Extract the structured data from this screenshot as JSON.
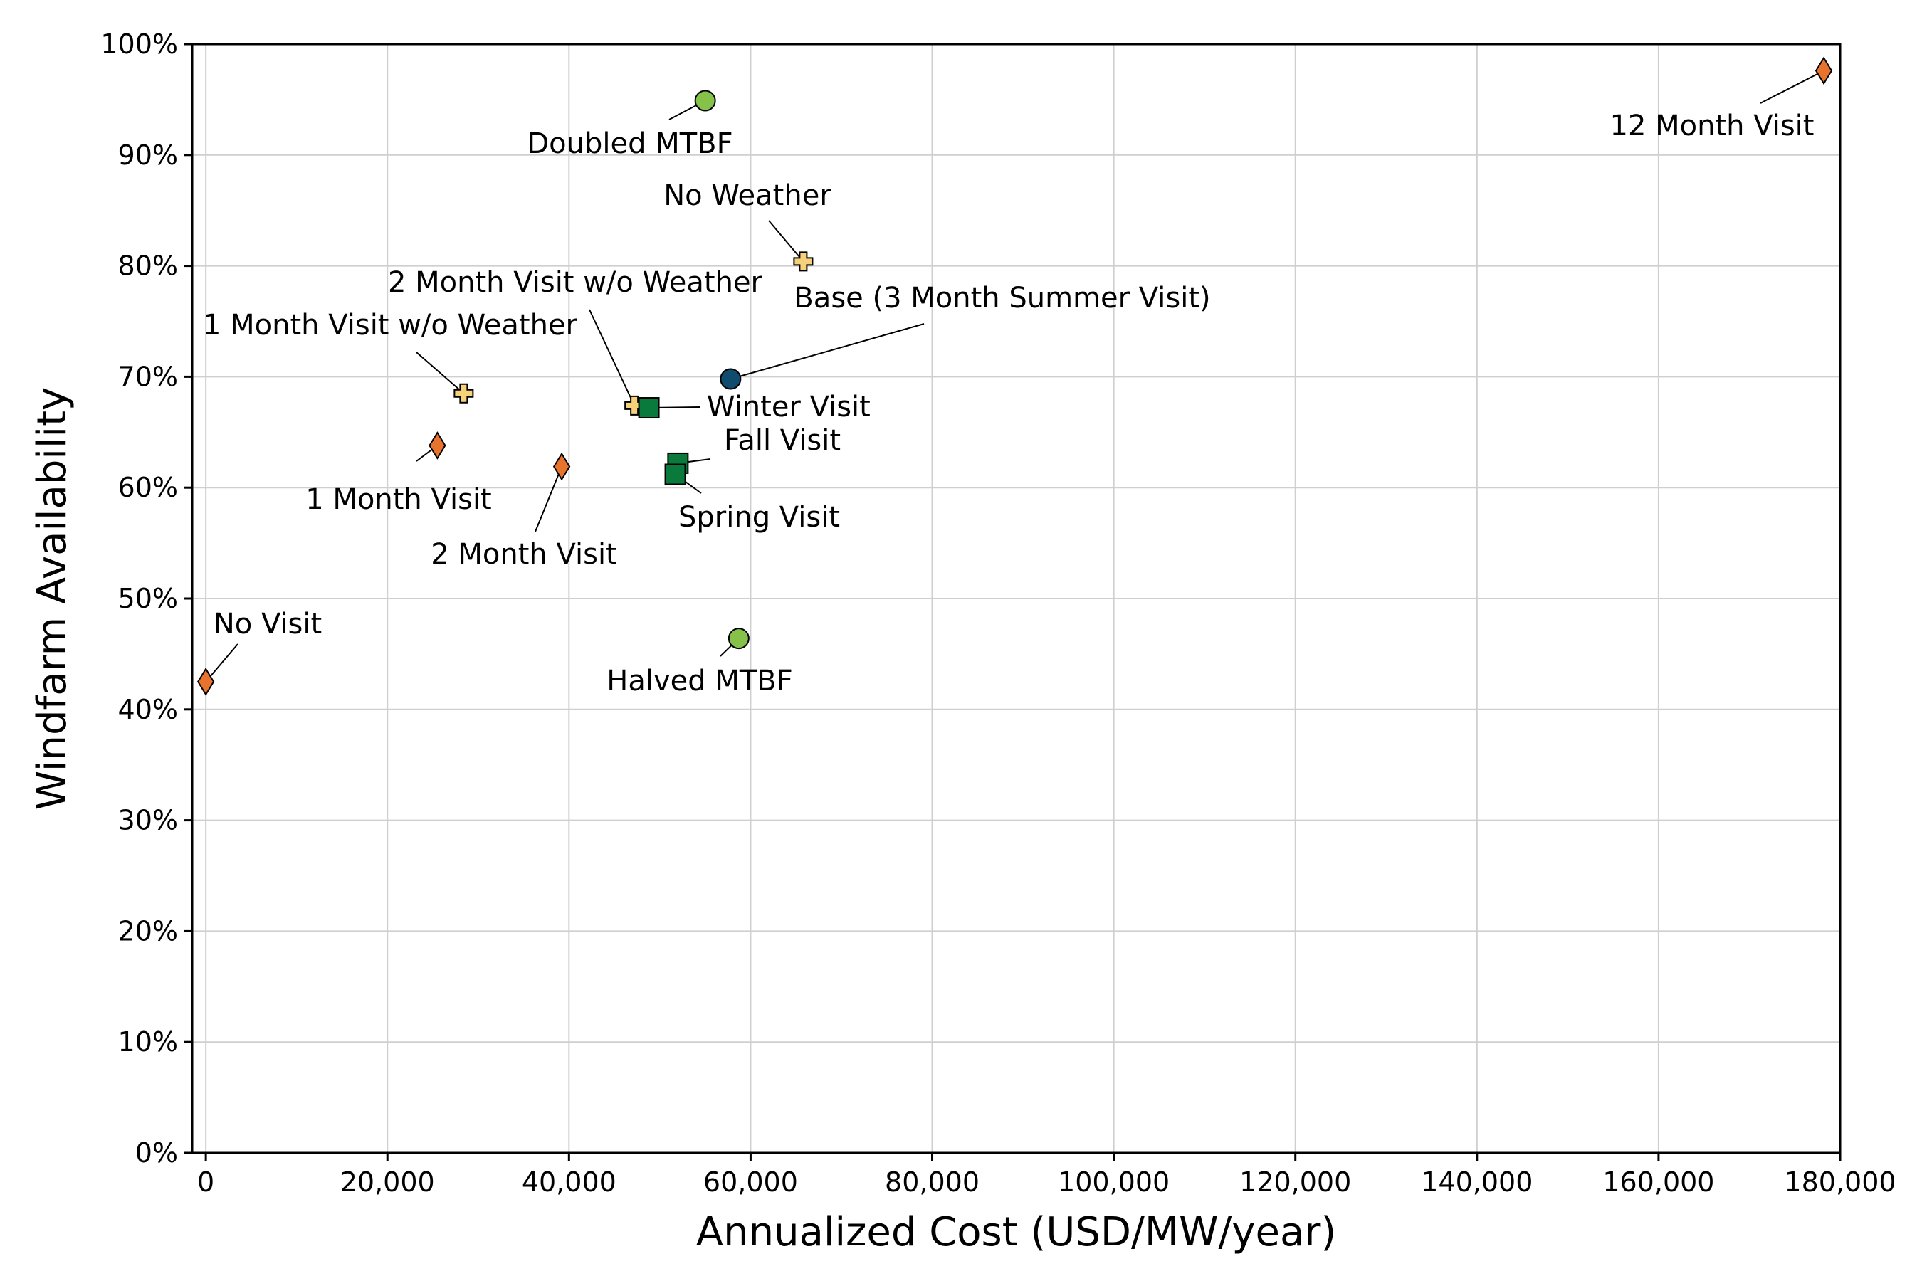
{
  "chart_data": {
    "type": "scatter",
    "xlabel": "Annualized Cost (USD/MW/year)",
    "ylabel": "Windfarm Availability",
    "xlim": [
      -1500,
      180000
    ],
    "ylim": [
      0,
      100
    ],
    "x_ticks": [
      0,
      20000,
      40000,
      60000,
      80000,
      100000,
      120000,
      140000,
      160000,
      180000
    ],
    "x_tick_labels": [
      "0",
      "20,000",
      "40,000",
      "60,000",
      "80,000",
      "100,000",
      "120,000",
      "140,000",
      "160,000",
      "180,000"
    ],
    "y_ticks": [
      0,
      10,
      20,
      30,
      40,
      50,
      60,
      70,
      80,
      90,
      100
    ],
    "y_tick_labels": [
      "0%",
      "10%",
      "20%",
      "30%",
      "40%",
      "50%",
      "60%",
      "70%",
      "80%",
      "90%",
      "100%"
    ],
    "grid": true,
    "colors": {
      "visit_frequency": "#e8732d",
      "no_weather": "#f5d27a",
      "season": "#0a7a3c",
      "mtbf": "#86c24a",
      "base": "#0f4c6e"
    },
    "points": [
      {
        "label": "12 Month Visit",
        "x": 178200,
        "y": 97.6,
        "marker": "diamond",
        "color_key": "visit_frequency"
      },
      {
        "label": "No Visit",
        "x": 0,
        "y": 42.5,
        "marker": "diamond",
        "color_key": "visit_frequency"
      },
      {
        "label": "1 Month Visit",
        "x": 25500,
        "y": 63.8,
        "marker": "diamond",
        "color_key": "visit_frequency"
      },
      {
        "label": "2 Month Visit",
        "x": 39200,
        "y": 61.9,
        "marker": "diamond",
        "color_key": "visit_frequency"
      },
      {
        "label": "No Weather",
        "x": 65800,
        "y": 80.4,
        "marker": "plus",
        "color_key": "no_weather"
      },
      {
        "label": "1 Month Visit w/o Weather",
        "x": 28400,
        "y": 68.5,
        "marker": "plus",
        "color_key": "no_weather"
      },
      {
        "label": "2 Month Visit w/o Weather",
        "x": 47200,
        "y": 67.4,
        "marker": "plus",
        "color_key": "no_weather"
      },
      {
        "label": "Winter Visit",
        "x": 48800,
        "y": 67.2,
        "marker": "square",
        "color_key": "season"
      },
      {
        "label": "Fall Visit",
        "x": 52000,
        "y": 62.2,
        "marker": "square",
        "color_key": "season"
      },
      {
        "label": "Spring Visit",
        "x": 51700,
        "y": 61.2,
        "marker": "square",
        "color_key": "season"
      },
      {
        "label": "Doubled MTBF",
        "x": 55000,
        "y": 94.9,
        "marker": "circle",
        "color_key": "mtbf"
      },
      {
        "label": "Halved MTBF",
        "x": 58700,
        "y": 46.4,
        "marker": "circle",
        "color_key": "mtbf"
      },
      {
        "label": "Base (3 Month Summer Visit)",
        "x": 57800,
        "y": 69.8,
        "marker": "circle",
        "color_key": "base"
      }
    ]
  }
}
